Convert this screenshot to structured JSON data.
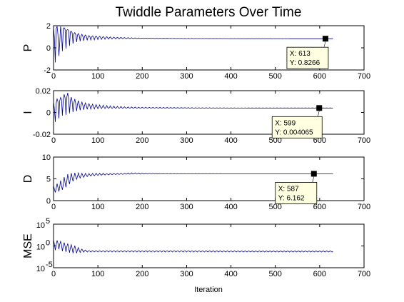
{
  "chart_data": {
    "type": "line",
    "title": "Twiddle Parameters Over Time",
    "xlabel": "Iteration",
    "xlim": [
      0,
      700
    ],
    "xticks": [
      0,
      100,
      200,
      300,
      400,
      500,
      600,
      700
    ],
    "line_color": "#00008b",
    "grid": false,
    "subplots": [
      {
        "name": "P",
        "ylabel": "P",
        "ylim": [
          -2,
          2
        ],
        "yticks": [
          -2,
          0,
          2
        ],
        "ytick_labels": [
          "-2",
          "0",
          "2"
        ],
        "series": [
          {
            "x": [
              0,
              5,
              10,
              15,
              20,
              30,
              40,
              50,
              60,
              80,
              100,
              130,
              160,
              200,
              250,
              300,
              400,
              500,
              613,
              630
            ],
            "y": [
              0.2,
              1.9,
              1.2,
              0.3,
              1.8,
              1.6,
              1.4,
              1.2,
              1.1,
              1.0,
              0.95,
              0.9,
              0.88,
              0.86,
              0.85,
              0.84,
              0.835,
              0.83,
              0.8266,
              0.826
            ],
            "envelope_upper": [
              1.9,
              1.9,
              1.95,
              1.95,
              1.9,
              1.7,
              1.5,
              1.35,
              1.25,
              1.1,
              1.05,
              0.98,
              0.93,
              0.88,
              0.86,
              0.85,
              0.84,
              0.835,
              0.83,
              0.83
            ],
            "envelope_lower": [
              -1.0,
              -1.4,
              -0.8,
              -0.6,
              -0.3,
              0.0,
              0.3,
              0.5,
              0.6,
              0.7,
              0.75,
              0.8,
              0.82,
              0.84,
              0.84,
              0.83,
              0.83,
              0.825,
              0.825,
              0.825
            ]
          }
        ],
        "datatip": {
          "x": 613,
          "y": 0.8266,
          "x_label": "X: 613",
          "y_label": "Y: 0.8266"
        }
      },
      {
        "name": "I",
        "ylabel": "I",
        "ylim": [
          -0.02,
          0.02
        ],
        "yticks": [
          -0.02,
          0,
          0.02
        ],
        "ytick_labels": [
          "-0.02",
          "0",
          "0.02"
        ],
        "series": [
          {
            "x": [
              0,
              5,
              10,
              20,
              30,
              40,
              50,
              60,
              80,
              100,
              130,
              160,
              200,
              300,
              400,
              500,
              599,
              630
            ],
            "y": [
              0.0,
              0.008,
              0.01,
              0.012,
              0.014,
              0.01,
              0.008,
              0.007,
              0.006,
              0.005,
              0.0045,
              0.0043,
              0.0042,
              0.0041,
              0.00407,
              0.00406,
              0.004065,
              0.00406
            ],
            "envelope_upper": [
              0.01,
              0.013,
              0.012,
              0.015,
              0.019,
              0.014,
              0.012,
              0.01,
              0.008,
              0.007,
              0.006,
              0.0052,
              0.0048,
              0.0044,
              0.0042,
              0.0041,
              0.0041,
              0.0041
            ],
            "envelope_lower": [
              -0.008,
              -0.009,
              -0.006,
              -0.003,
              -0.002,
              0.0,
              0.001,
              0.002,
              0.003,
              0.0035,
              0.0038,
              0.0039,
              0.004,
              0.004,
              0.004,
              0.004,
              0.004,
              0.004
            ]
          }
        ],
        "datatip": {
          "x": 599,
          "y": 0.004065,
          "x_label": "X: 599",
          "y_label": "Y: 0.004065"
        }
      },
      {
        "name": "D",
        "ylabel": "D",
        "ylim": [
          0,
          10
        ],
        "yticks": [
          0,
          5,
          10
        ],
        "ytick_labels": [
          "0",
          "5",
          "10"
        ],
        "series": [
          {
            "x": [
              0,
              10,
              20,
              30,
              40,
              50,
              60,
              80,
              100,
              120,
              140,
              160,
              180,
              200,
              250,
              300,
              400,
              500,
              587,
              630
            ],
            "y": [
              2.5,
              3.0,
              3.5,
              4.5,
              5.2,
              5.5,
              5.7,
              5.9,
              6.0,
              6.05,
              6.1,
              6.12,
              6.2,
              6.18,
              6.17,
              6.165,
              6.163,
              6.162,
              6.162,
              6.162
            ],
            "envelope_upper": [
              3.5,
              4.0,
              5.0,
              6.0,
              6.3,
              6.4,
              6.3,
              6.2,
              6.3,
              6.2,
              6.25,
              6.3,
              6.4,
              6.3,
              6.2,
              6.18,
              6.17,
              6.165,
              6.165,
              6.165
            ],
            "envelope_lower": [
              1.8,
              2.0,
              2.5,
              3.2,
              4.2,
              4.8,
              5.2,
              5.6,
              5.8,
              5.9,
              6.0,
              6.05,
              6.1,
              6.1,
              6.14,
              6.15,
              6.16,
              6.16,
              6.16,
              6.16
            ]
          }
        ],
        "datatip": {
          "x": 587,
          "y": 6.162,
          "x_label": "X: 587",
          "y_label": "Y: 6.162"
        }
      },
      {
        "name": "MSE",
        "ylabel": "MSE",
        "yscale": "log",
        "ylim_exp": [
          -5,
          5
        ],
        "yticks_exp": [
          -5,
          0,
          5
        ],
        "ytick_base": "10",
        "ytick_exponents": [
          "-5",
          "0",
          "5"
        ],
        "series": [
          {
            "x": [
              0,
              5,
              10,
              20,
              30,
              40,
              50,
              60,
              70,
              80,
              100,
              150,
              200,
              300,
              400,
              500,
              630
            ],
            "y_exp": [
              0.5,
              0.2,
              0.6,
              0.1,
              -0.2,
              -0.5,
              -0.8,
              -1.0,
              -1.1,
              -1.2,
              -1.2,
              -1.2,
              -1.2,
              -1.2,
              -1.25,
              -1.25,
              -1.25
            ],
            "envelope_upper_exp": [
              1.5,
              1.2,
              1.3,
              0.9,
              0.6,
              0.3,
              0.0,
              -0.6,
              -0.9,
              -1.1,
              -1.1,
              -1.1,
              -1.1,
              -1.1,
              -1.1,
              -1.15,
              -1.15
            ],
            "envelope_lower_exp": [
              -0.8,
              -1.0,
              -0.6,
              -1.2,
              -1.4,
              -1.6,
              -1.7,
              -1.5,
              -1.4,
              -1.4,
              -1.4,
              -1.4,
              -1.4,
              -1.4,
              -1.4,
              -1.4,
              -1.4
            ]
          }
        ]
      }
    ]
  }
}
